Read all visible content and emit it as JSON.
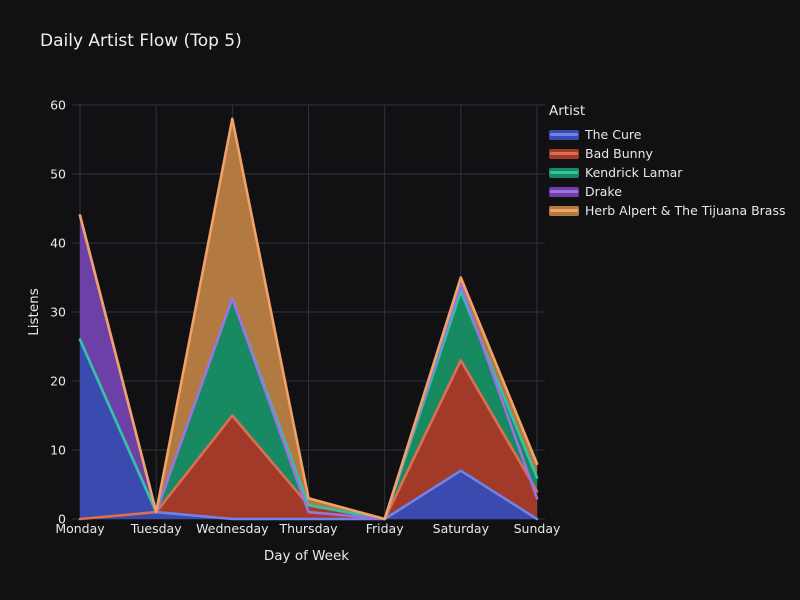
{
  "page": {
    "title": "Daily Artist Flow (Top 5)"
  },
  "chart_data": {
    "type": "area",
    "title": "Daily Artist Flow (Top 5)",
    "xlabel": "Day of Week",
    "ylabel": "Listens",
    "ylim": [
      0,
      60
    ],
    "yticks": [
      0,
      10,
      20,
      30,
      40,
      50,
      60
    ],
    "grid": true,
    "legend_title": "Artist",
    "legend_position": "right",
    "overlap_mode": "overlay",
    "categories": [
      "Monday",
      "Tuesday",
      "Wednesday",
      "Thursday",
      "Friday",
      "Saturday",
      "Sunday"
    ],
    "series": [
      {
        "name": "The Cure",
        "values": [
          26,
          1,
          0,
          0,
          0,
          7,
          0
        ],
        "fill": "#3A4AAE",
        "stroke": "#7183E6"
      },
      {
        "name": "Bad Bunny",
        "values": [
          0,
          1,
          15,
          2,
          0,
          23,
          4
        ],
        "fill": "#A23A2A",
        "stroke": "#DD6E52"
      },
      {
        "name": "Kendrick Lamar",
        "values": [
          26,
          1,
          32,
          2,
          0,
          33,
          6
        ],
        "fill": "#178A62",
        "stroke": "#32C3A5"
      },
      {
        "name": "Drake",
        "values": [
          44,
          1,
          32,
          1,
          0,
          34,
          3
        ],
        "fill": "#6D40A8",
        "stroke": "#9C71E2"
      },
      {
        "name": "Herb Alpert & The Tijuana Brass",
        "values": [
          44,
          1,
          58,
          3,
          0,
          35,
          8
        ],
        "fill": "#B27940",
        "stroke": "#F0A269"
      }
    ],
    "colors": {
      "background": "#111113",
      "grid": "#2E333B",
      "text": "#E9E9EC"
    }
  }
}
